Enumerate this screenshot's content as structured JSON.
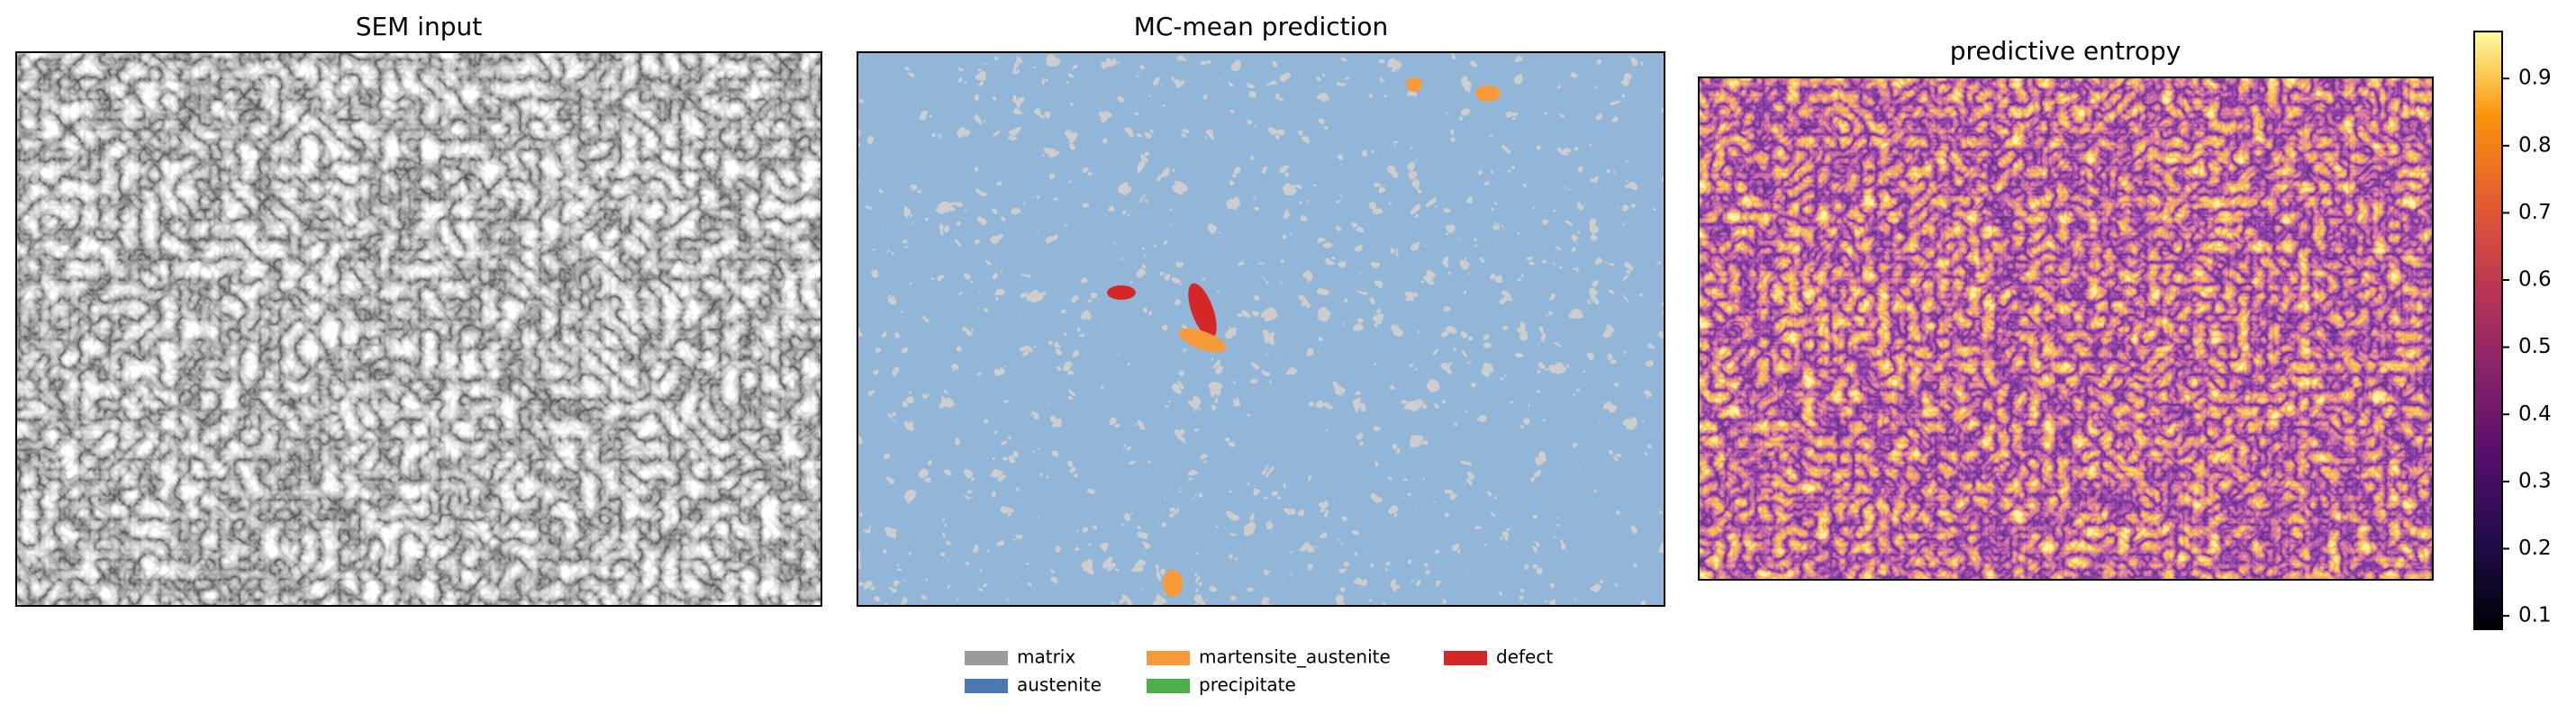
{
  "chart_data": [
    {
      "type": "image",
      "title": "SEM input"
    },
    {
      "type": "segmentation",
      "title": "MC-mean prediction",
      "series": [
        {
          "name": "matrix",
          "color": "#9b9b9b"
        },
        {
          "name": "austenite",
          "color": "#4a78b0"
        },
        {
          "name": "martensite_austenite",
          "color": "#f99a38"
        },
        {
          "name": "precipitate",
          "color": "#4daf4a"
        },
        {
          "name": "defect",
          "color": "#d62728"
        }
      ]
    },
    {
      "type": "heatmap",
      "title": "predictive entropy",
      "colormap": "inferno",
      "ylim": [
        0.08,
        0.97
      ],
      "yticks": [
        0.1,
        0.2,
        0.3,
        0.4,
        0.5,
        0.6,
        0.7,
        0.8,
        0.9
      ]
    }
  ]
}
